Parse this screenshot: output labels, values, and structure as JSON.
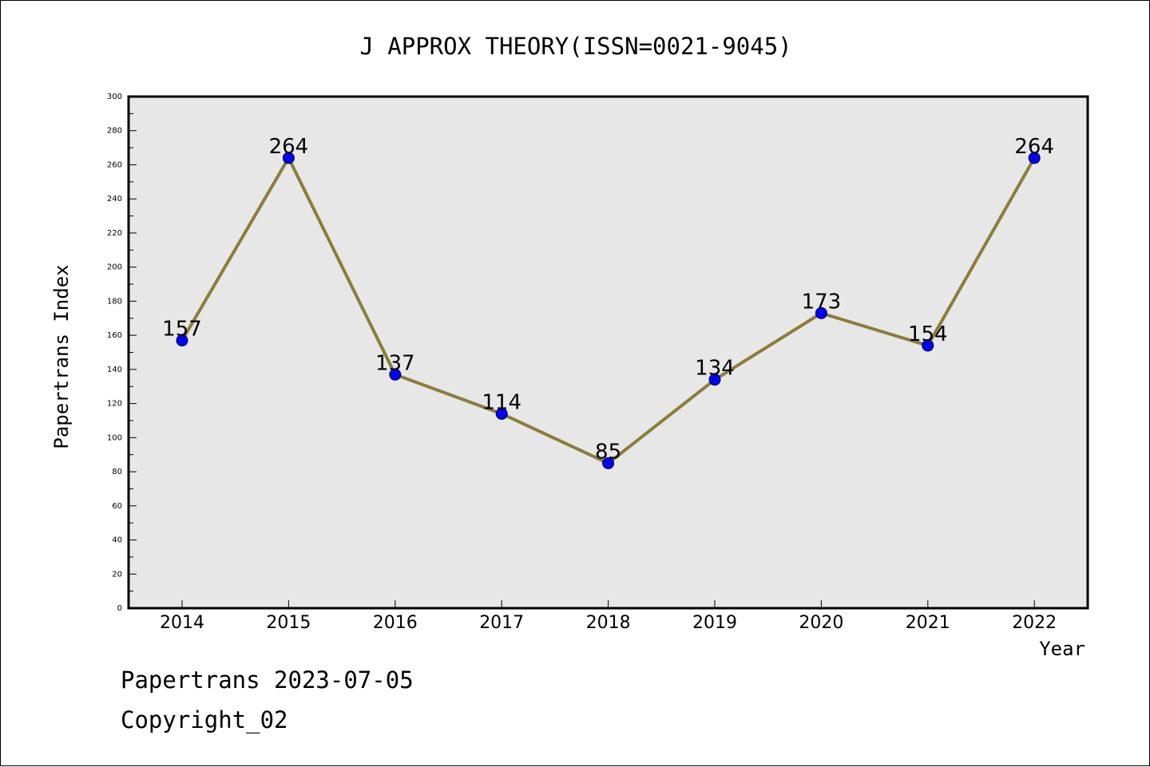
{
  "colors": {
    "plot_background": "#e7e7e7",
    "line": "#8b7d3a",
    "marker": "#0000ff",
    "axis": "#000000",
    "text": "#000000"
  },
  "chart_data": {
    "type": "line",
    "title": "J APPROX THEORY(ISSN=0021-9045)",
    "xlabel": "Year",
    "ylabel": "Papertrans Index",
    "categories": [
      "2014",
      "2015",
      "2016",
      "2017",
      "2018",
      "2019",
      "2020",
      "2021",
      "2022"
    ],
    "series": [
      {
        "values": [
          157,
          264,
          137,
          114,
          85,
          134,
          173,
          154,
          264
        ]
      }
    ],
    "data_labels": [
      "157",
      "264",
      "137",
      "114",
      "85",
      "134",
      "173",
      "154",
      "264"
    ],
    "ylim": [
      0,
      300
    ],
    "y_major_ticks": [
      0,
      20,
      40,
      60,
      80,
      100,
      120,
      140,
      160,
      180,
      200,
      220,
      240,
      260,
      280,
      300
    ],
    "y_minor_ticks": [
      10,
      30,
      50,
      70,
      90,
      110,
      130,
      150,
      170,
      190,
      210,
      230,
      250,
      270,
      290
    ],
    "grid": false,
    "legend": "none"
  },
  "footer": {
    "line1": "Papertrans 2023-07-05",
    "line2": "Copyright_02"
  }
}
